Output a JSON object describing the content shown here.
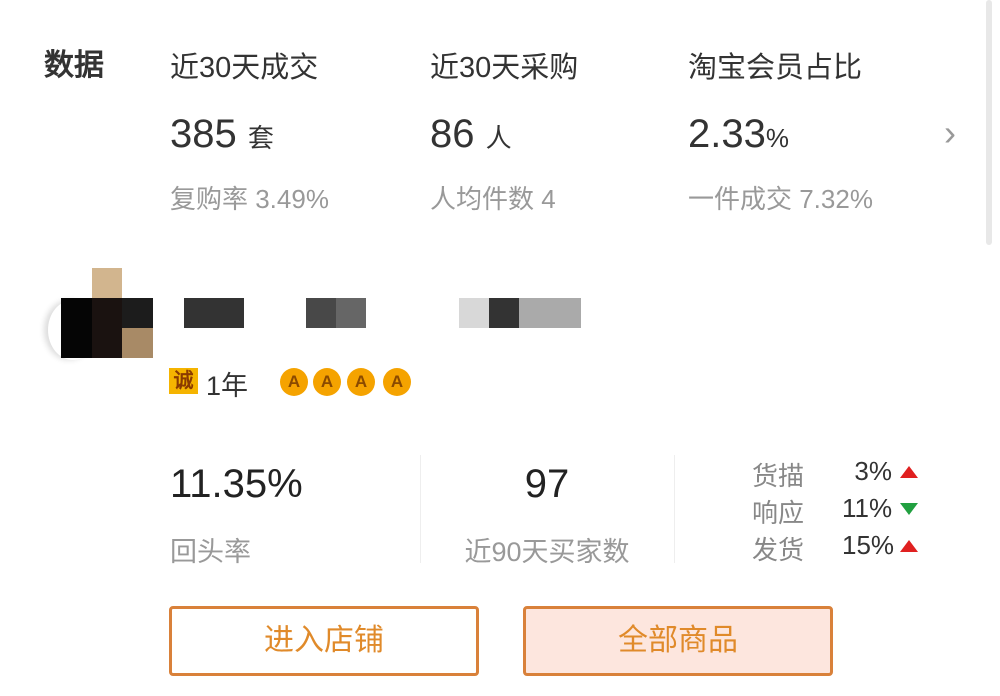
{
  "section_title": "数据",
  "stats": [
    {
      "label": "近30天成交",
      "value": "385",
      "unit": "套",
      "sub": "复购率 3.49%"
    },
    {
      "label": "近30天采购",
      "value": "86",
      "unit": "人",
      "sub": "人均件数 4"
    },
    {
      "label": "淘宝会员占比",
      "value": "2.33",
      "unit": "%",
      "sub": "一件成交 7.32%"
    }
  ],
  "chevron_icon": "chevron-right-icon",
  "shop": {
    "badge": "诚",
    "years": "1年",
    "crowns": [
      "A",
      "A",
      "A",
      "A"
    ],
    "crown_color": "#f5a300"
  },
  "metrics": {
    "return_rate": "11.35%",
    "return_label": "回头率",
    "buyers": "97",
    "buyers_label": "近90天买家数"
  },
  "ratings": [
    {
      "label": "货描",
      "value": "3%",
      "trend": "up"
    },
    {
      "label": "响应",
      "value": "11%",
      "trend": "down"
    },
    {
      "label": "发货",
      "value": "15%",
      "trend": "up"
    }
  ],
  "buttons": {
    "enter_shop": "进入店铺",
    "all_products": "全部商品"
  },
  "colors": {
    "accent": "#e08a2a",
    "up": "#e02020",
    "down": "#21a040"
  }
}
